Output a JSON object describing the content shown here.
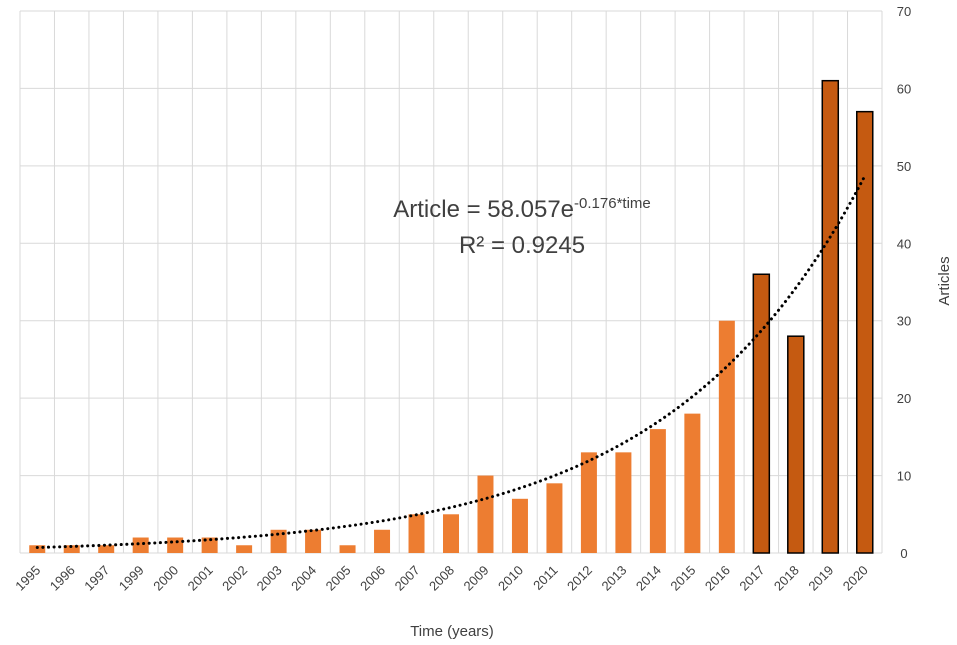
{
  "chart_data": {
    "type": "bar",
    "categories": [
      "1995",
      "1996",
      "1997",
      "1999",
      "2000",
      "2001",
      "2002",
      "2003",
      "2004",
      "2005",
      "2006",
      "2007",
      "2008",
      "2009",
      "2010",
      "2011",
      "2012",
      "2013",
      "2014",
      "2015",
      "2016",
      "2017",
      "2018",
      "2019",
      "2020"
    ],
    "values": [
      1,
      1,
      1,
      2,
      2,
      2,
      1,
      3,
      3,
      1,
      3,
      5,
      5,
      10,
      7,
      9,
      13,
      13,
      16,
      18,
      30,
      36,
      28,
      61,
      57
    ],
    "highlighted_categories": [
      "2017",
      "2018",
      "2019",
      "2020"
    ],
    "xlabel": "Time (years)",
    "ylabel": "Articles",
    "ylim": [
      0,
      70
    ],
    "yticks": [
      0,
      10,
      20,
      30,
      40,
      50,
      60,
      70
    ],
    "y_axis_side": "right",
    "grid": true,
    "trendline": {
      "type": "exponential",
      "style": "dotted",
      "color": "#000000",
      "a": 58.057,
      "b": -0.176,
      "equation_prefix": "Article = 58.057e",
      "equation_exponent": "-0.176*time",
      "r_squared_text": "R² = 0.9245"
    },
    "colors": {
      "bar": "#ED7D31",
      "bar_highlight": "#C55A11",
      "bar_highlight_outline": "#000000",
      "grid": "#D9D9D9",
      "text": "#404040"
    }
  }
}
